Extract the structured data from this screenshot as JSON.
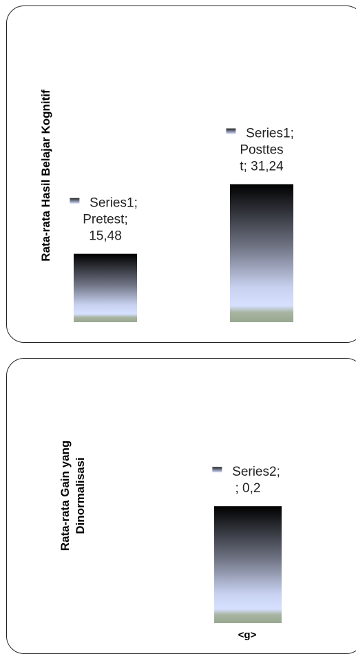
{
  "chart_data": [
    {
      "type": "bar",
      "ylabel": "Rata-rata Hasil Belajar Kognitif",
      "xlabel": "",
      "categories": [
        "Pretest",
        "Posttest"
      ],
      "series": [
        {
          "name": "Series1",
          "values": [
            15.48,
            31.24
          ]
        }
      ],
      "data_labels": [
        [
          "Series1;",
          "Pretest;",
          "15,48"
        ],
        [
          "Series1;",
          "Posttes",
          "t; 31,24"
        ]
      ],
      "ylim": [
        0,
        60
      ],
      "grid": false,
      "legend": "none"
    },
    {
      "type": "bar",
      "ylabel_lines": [
        "Rata-rata Gain yang",
        "Dinormalisasi"
      ],
      "xlabel": "",
      "categories": [
        "<g>"
      ],
      "series": [
        {
          "name": "Series2",
          "values": [
            0.2
          ]
        }
      ],
      "data_labels": [
        [
          "Series2;",
          "; 0,2"
        ]
      ],
      "ylim": [
        0,
        0.45
      ],
      "grid": false,
      "legend": "none"
    }
  ]
}
